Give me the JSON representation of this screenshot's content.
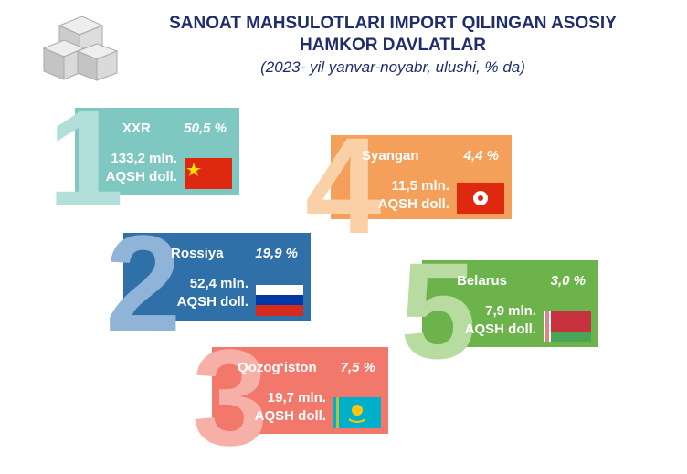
{
  "header": {
    "title_lines": [
      "SANOAT MAHSULOTLARI IMPORT QILINGAN ASOSIY",
      "HAMKOR DAVLATLAR"
    ],
    "subtitle": "(2023- yil yanvar-noyabr, ulushi, % da)"
  },
  "items": [
    {
      "rank": "1",
      "country": "XXR",
      "share": "50,5 %",
      "amount": "133,2 mln.",
      "unit": "AQSH doll."
    },
    {
      "rank": "4",
      "country": "Syangan",
      "share": "4,4 %",
      "amount": "11,5 mln.",
      "unit": "AQSH doll."
    },
    {
      "rank": "2",
      "country": "Rossiya",
      "share": "19,9 %",
      "amount": "52,4 mln.",
      "unit": "AQSH doll."
    },
    {
      "rank": "5",
      "country": "Belarus",
      "share": "3,0 %",
      "amount": "7,9 mln.",
      "unit": "AQSH doll."
    },
    {
      "rank": "3",
      "country": "Qozog‘iston",
      "share": "7,5 %",
      "amount": "19,7 mln.",
      "unit": "AQSH doll."
    }
  ]
}
